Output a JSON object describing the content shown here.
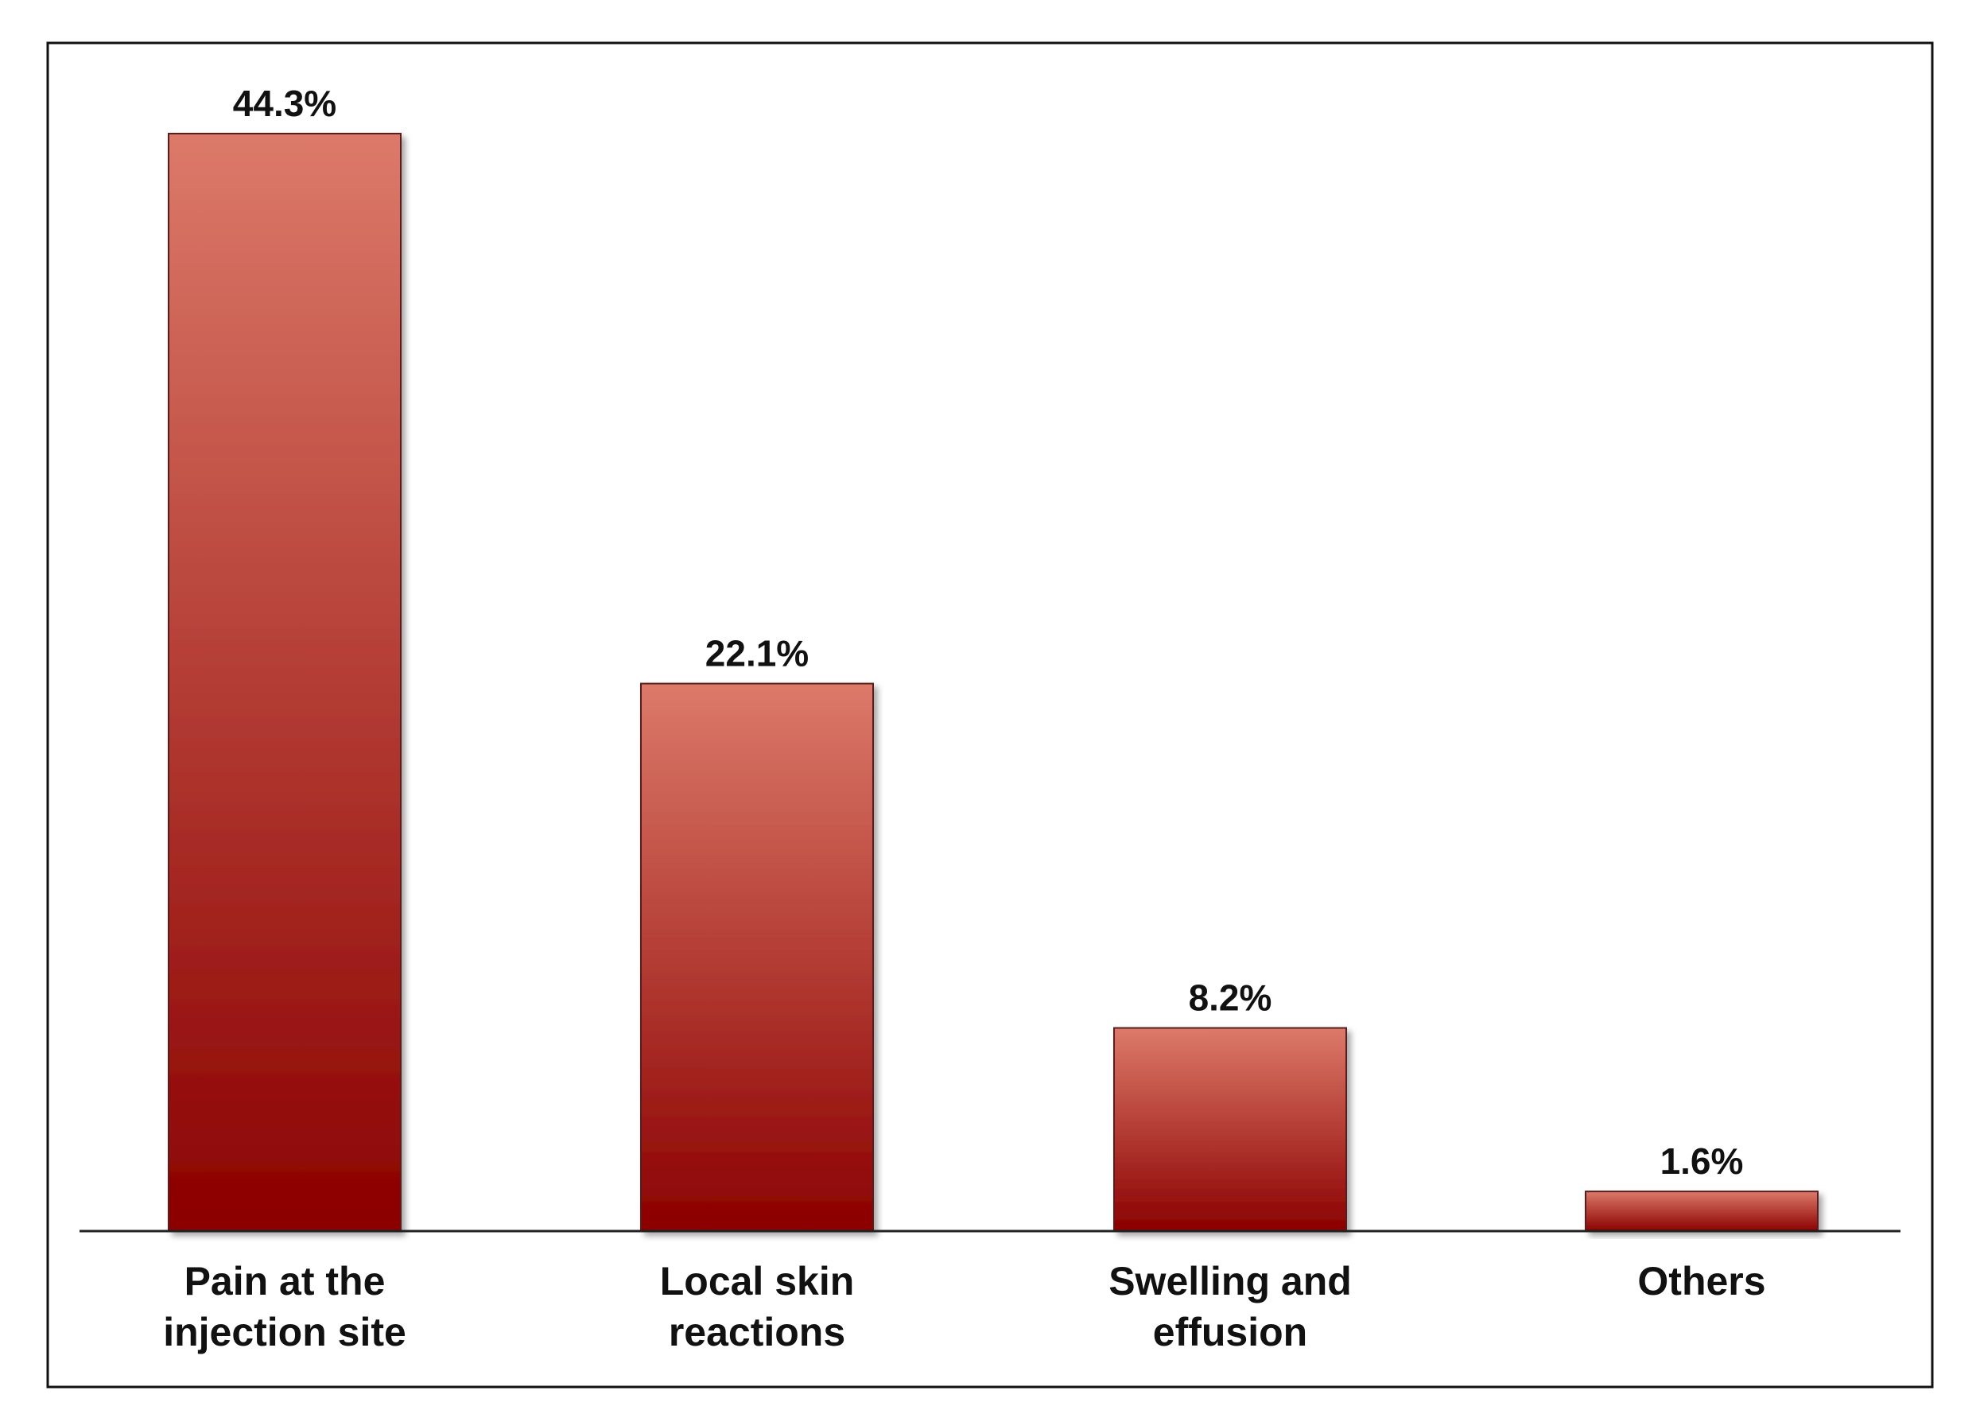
{
  "chart_data": {
    "type": "bar",
    "categories": [
      [
        "Pain at the",
        "injection site"
      ],
      [
        "Local skin",
        "reactions"
      ],
      [
        "Swelling and",
        "effusion"
      ],
      [
        "Others"
      ]
    ],
    "values": [
      44.3,
      22.1,
      8.2,
      1.6
    ],
    "value_labels": [
      "44.3%",
      "22.1%",
      "8.2%",
      "1.6%"
    ],
    "unit": "%",
    "ylim": [
      0,
      44.3
    ],
    "grid": false,
    "legend": "none",
    "colors": {
      "bar_top": "#dc7a6a",
      "bar_bottom": "#8b0000",
      "bar_stroke": "#5a1e1e",
      "axis": "#222222",
      "frame": "#111111"
    }
  }
}
